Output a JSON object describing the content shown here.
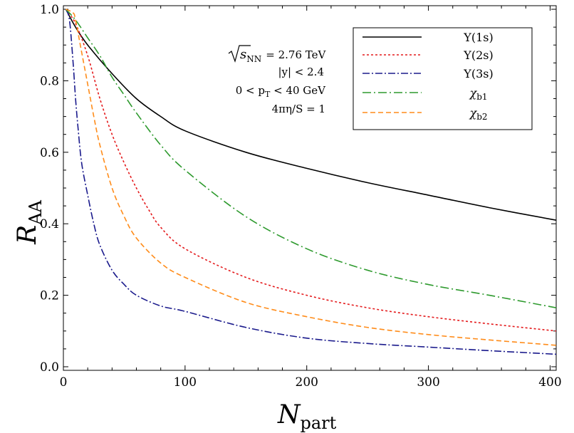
{
  "chart_data": {
    "type": "line",
    "xlabel": "N",
    "xlabel_sub": "part",
    "ylabel": "R",
    "ylabel_sub": "AA",
    "xlim": [
      0,
      405
    ],
    "ylim": [
      -0.01,
      1.01
    ],
    "xticks": [
      0,
      100,
      200,
      300,
      400
    ],
    "xtick_labels": [
      "0",
      "100",
      "200",
      "300",
      "400"
    ],
    "yticks": [
      0.0,
      0.2,
      0.4,
      0.6,
      0.8,
      1.0
    ],
    "ytick_labels": [
      "0.0",
      "0.2",
      "0.4",
      "0.6",
      "0.8",
      "1.0"
    ],
    "annotations": {
      "sqrt_s": "s",
      "sqrt_s_sub": "NN",
      "energy": "= 2.76 TeV",
      "rapidity": "|y| < 2.4",
      "pt_prefix": "0 < p",
      "pt_sub": "T",
      "pt_suffix": " < 40 GeV",
      "eta_s": "4πη/S = 1"
    },
    "legend_position": "top-right",
    "series": [
      {
        "name": "Υ(1s)",
        "color": "#000000",
        "dash": "",
        "x": [
          2,
          10,
          20,
          40,
          60,
          80,
          100,
          150,
          200,
          250,
          300,
          350,
          405
        ],
        "y": [
          1.0,
          0.95,
          0.9,
          0.82,
          0.75,
          0.7,
          0.66,
          0.6,
          0.555,
          0.515,
          0.48,
          0.445,
          0.41
        ]
      },
      {
        "name": "Υ(2s)",
        "color": "#e41a1c",
        "dash": "3,3",
        "x": [
          2,
          10,
          20,
          30,
          40,
          50,
          60,
          70,
          80,
          100,
          150,
          200,
          250,
          300,
          350,
          405
        ],
        "y": [
          1.0,
          0.96,
          0.87,
          0.75,
          0.65,
          0.57,
          0.5,
          0.44,
          0.39,
          0.33,
          0.25,
          0.2,
          0.165,
          0.14,
          0.12,
          0.1
        ]
      },
      {
        "name": "Υ(3s)",
        "color": "#1a1a8c",
        "dash": "10,3,2,3",
        "x": [
          2,
          5,
          8,
          10,
          12,
          15,
          20,
          25,
          30,
          40,
          50,
          60,
          80,
          100,
          150,
          200,
          250,
          300,
          350,
          405
        ],
        "y": [
          1.0,
          0.97,
          0.85,
          0.75,
          0.67,
          0.57,
          0.48,
          0.4,
          0.34,
          0.27,
          0.23,
          0.2,
          0.17,
          0.155,
          0.11,
          0.08,
          0.065,
          0.055,
          0.045,
          0.035
        ]
      },
      {
        "name": "χ",
        "name_sub": "b1",
        "color": "#2e9a2e",
        "dash": "12,4,2,4",
        "x": [
          2,
          10,
          20,
          30,
          40,
          50,
          60,
          80,
          100,
          150,
          200,
          250,
          300,
          350,
          405
        ],
        "y": [
          1.0,
          0.97,
          0.92,
          0.87,
          0.81,
          0.76,
          0.71,
          0.62,
          0.55,
          0.42,
          0.33,
          0.27,
          0.23,
          0.2,
          0.165
        ]
      },
      {
        "name": "χ",
        "name_sub": "b2",
        "color": "#ff8c1a",
        "dash": "7,4",
        "x": [
          2,
          8,
          10,
          15,
          20,
          25,
          30,
          40,
          50,
          60,
          80,
          100,
          150,
          200,
          250,
          300,
          350,
          405
        ],
        "y": [
          1.0,
          0.99,
          0.97,
          0.88,
          0.79,
          0.7,
          0.62,
          0.5,
          0.42,
          0.36,
          0.29,
          0.25,
          0.18,
          0.14,
          0.11,
          0.09,
          0.075,
          0.06
        ]
      }
    ]
  }
}
